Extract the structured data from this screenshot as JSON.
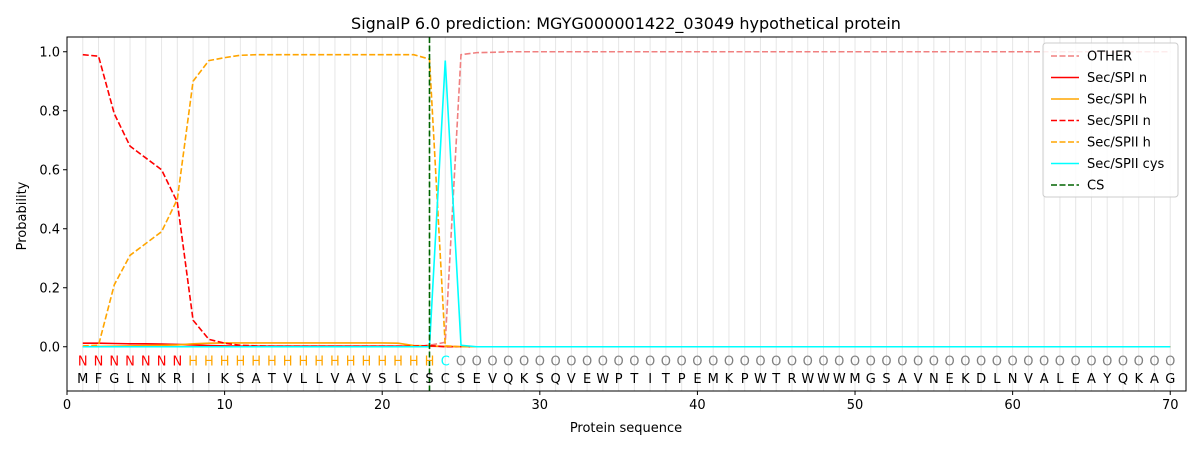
{
  "chart_data": {
    "type": "line",
    "title": "SignalP 6.0 prediction: MGYG000001422_03049 hypothetical protein",
    "xlabel": "Protein sequence",
    "ylabel": "Probability",
    "xlim": [
      0,
      71
    ],
    "ylim": [
      -0.15,
      1.05
    ],
    "xticks": [
      0,
      10,
      20,
      30,
      40,
      50,
      60,
      70
    ],
    "yticks": [
      0.0,
      0.2,
      0.4,
      0.6,
      0.8,
      1.0
    ],
    "xtick_labels": [
      "0",
      "10",
      "20",
      "30",
      "40",
      "50",
      "60",
      "70"
    ],
    "ytick_labels": [
      "0.0",
      "0.2",
      "0.4",
      "0.6",
      "0.8",
      "1.0"
    ],
    "legend_position": "top-right",
    "sequence": [
      "M",
      "F",
      "G",
      "L",
      "N",
      "K",
      "R",
      "I",
      "I",
      "K",
      "S",
      "A",
      "T",
      "V",
      "L",
      "L",
      "V",
      "A",
      "V",
      "S",
      "L",
      "C",
      "S",
      "C",
      "S",
      "E",
      "V",
      "Q",
      "K",
      "S",
      "Q",
      "V",
      "E",
      "W",
      "P",
      "T",
      "I",
      "T",
      "P",
      "E",
      "M",
      "K",
      "P",
      "W",
      "T",
      "R",
      "W",
      "W",
      "W",
      "M",
      "G",
      "S",
      "A",
      "V",
      "N",
      "E",
      "K",
      "D",
      "L",
      "N",
      "V",
      "A",
      "L",
      "E",
      "A",
      "Y",
      "Q",
      "K",
      "A",
      "G"
    ],
    "region_labels": [
      "N",
      "N",
      "N",
      "N",
      "N",
      "N",
      "N",
      "H",
      "H",
      "H",
      "H",
      "H",
      "H",
      "H",
      "H",
      "H",
      "H",
      "H",
      "H",
      "H",
      "H",
      "H",
      "H",
      "C",
      "O",
      "O",
      "O",
      "O",
      "O",
      "O",
      "O",
      "O",
      "O",
      "O",
      "O",
      "O",
      "O",
      "O",
      "O",
      "O",
      "O",
      "O",
      "O",
      "O",
      "O",
      "O",
      "O",
      "O",
      "O",
      "O",
      "O",
      "O",
      "O",
      "O",
      "O",
      "O",
      "O",
      "O",
      "O",
      "O",
      "O",
      "O",
      "O",
      "O",
      "O",
      "O",
      "O",
      "O",
      "O",
      "O"
    ],
    "region_colors": {
      "N": "#ff0000",
      "H": "#ffa500",
      "C": "#00ffff",
      "O": "#808080"
    },
    "cleavage_site": 23,
    "series": [
      {
        "name": "OTHER",
        "color": "#f08080",
        "dash": "dashed",
        "x_start": 1,
        "values": [
          0.0,
          0.0,
          0.0,
          0.0,
          0.0,
          0.0,
          0.0,
          0.0,
          0.0,
          0.0,
          0.0,
          0.0,
          0.0,
          0.0,
          0.0,
          0.0,
          0.0,
          0.0,
          0.0,
          0.0,
          0.0,
          0.0,
          0.005,
          0.015,
          0.99,
          0.997,
          0.998,
          1.0,
          1.0,
          1.0,
          1.0,
          1.0,
          1.0,
          1.0,
          1.0,
          1.0,
          1.0,
          1.0,
          1.0,
          1.0,
          1.0,
          1.0,
          1.0,
          1.0,
          1.0,
          1.0,
          1.0,
          1.0,
          1.0,
          1.0,
          1.0,
          1.0,
          1.0,
          1.0,
          1.0,
          1.0,
          1.0,
          1.0,
          1.0,
          1.0,
          1.0,
          1.0,
          1.0,
          1.0,
          1.0,
          1.0,
          1.0,
          1.0,
          1.0,
          1.0
        ]
      },
      {
        "name": "Sec/SPI n",
        "color": "#ff0000",
        "dash": "solid",
        "x_start": 1,
        "values": [
          0.012,
          0.012,
          0.011,
          0.01,
          0.01,
          0.009,
          0.008,
          0.006,
          0.004,
          0.003,
          0.002,
          0.002,
          0.002,
          0.002,
          0.002,
          0.002,
          0.002,
          0.002,
          0.002,
          0.002,
          0.002,
          0.002,
          0.002,
          0.001,
          0.0,
          0.0,
          0.0,
          0.0,
          0.0,
          0.0,
          0.0,
          0.0,
          0.0,
          0.0,
          0.0,
          0.0,
          0.0,
          0.0,
          0.0,
          0.0,
          0.0,
          0.0,
          0.0,
          0.0,
          0.0,
          0.0,
          0.0,
          0.0,
          0.0,
          0.0,
          0.0,
          0.0,
          0.0,
          0.0,
          0.0,
          0.0,
          0.0,
          0.0,
          0.0,
          0.0,
          0.0,
          0.0,
          0.0,
          0.0,
          0.0,
          0.0,
          0.0,
          0.0,
          0.0,
          0.0
        ]
      },
      {
        "name": "Sec/SPI h",
        "color": "#ffa500",
        "dash": "solid",
        "x_start": 1,
        "values": [
          0.0,
          0.001,
          0.002,
          0.003,
          0.004,
          0.005,
          0.006,
          0.01,
          0.012,
          0.013,
          0.013,
          0.013,
          0.013,
          0.013,
          0.013,
          0.013,
          0.013,
          0.013,
          0.013,
          0.013,
          0.012,
          0.004,
          0.003,
          0.001,
          0.0,
          0.0,
          0.0,
          0.0,
          0.0,
          0.0,
          0.0,
          0.0,
          0.0,
          0.0,
          0.0,
          0.0,
          0.0,
          0.0,
          0.0,
          0.0,
          0.0,
          0.0,
          0.0,
          0.0,
          0.0,
          0.0,
          0.0,
          0.0,
          0.0,
          0.0,
          0.0,
          0.0,
          0.0,
          0.0,
          0.0,
          0.0,
          0.0,
          0.0,
          0.0,
          0.0,
          0.0,
          0.0,
          0.0,
          0.0,
          0.0,
          0.0,
          0.0,
          0.0,
          0.0,
          0.0
        ]
      },
      {
        "name": "Sec/SPII n",
        "color": "#ff0000",
        "dash": "dashed",
        "x_start": 1,
        "values": [
          0.99,
          0.985,
          0.79,
          0.68,
          0.64,
          0.6,
          0.49,
          0.09,
          0.025,
          0.012,
          0.005,
          0.003,
          0.002,
          0.002,
          0.002,
          0.002,
          0.002,
          0.002,
          0.002,
          0.002,
          0.002,
          0.002,
          0.004,
          0.0,
          0.0,
          0.0,
          0.0,
          0.0,
          0.0,
          0.0,
          0.0,
          0.0,
          0.0,
          0.0,
          0.0,
          0.0,
          0.0,
          0.0,
          0.0,
          0.0,
          0.0,
          0.0,
          0.0,
          0.0,
          0.0,
          0.0,
          0.0,
          0.0,
          0.0,
          0.0,
          0.0,
          0.0,
          0.0,
          0.0,
          0.0,
          0.0,
          0.0,
          0.0,
          0.0,
          0.0,
          0.0,
          0.0,
          0.0,
          0.0,
          0.0,
          0.0,
          0.0,
          0.0,
          0.0,
          0.0
        ]
      },
      {
        "name": "Sec/SPII h",
        "color": "#ffa500",
        "dash": "dashed",
        "x_start": 1,
        "values": [
          0.003,
          0.005,
          0.21,
          0.31,
          0.35,
          0.39,
          0.5,
          0.9,
          0.97,
          0.98,
          0.988,
          0.99,
          0.99,
          0.99,
          0.99,
          0.99,
          0.99,
          0.99,
          0.99,
          0.99,
          0.99,
          0.99,
          0.975,
          0.003,
          0.0,
          0.0,
          0.0,
          0.0,
          0.0,
          0.0,
          0.0,
          0.0,
          0.0,
          0.0,
          0.0,
          0.0,
          0.0,
          0.0,
          0.0,
          0.0,
          0.0,
          0.0,
          0.0,
          0.0,
          0.0,
          0.0,
          0.0,
          0.0,
          0.0,
          0.0,
          0.0,
          0.0,
          0.0,
          0.0,
          0.0,
          0.0,
          0.0,
          0.0,
          0.0,
          0.0,
          0.0,
          0.0,
          0.0,
          0.0,
          0.0,
          0.0,
          0.0,
          0.0,
          0.0,
          0.0
        ]
      },
      {
        "name": "Sec/SPII cys",
        "color": "#00ffff",
        "dash": "solid",
        "x_start": 1,
        "values": [
          0.0,
          0.0,
          0.0,
          0.0,
          0.0,
          0.0,
          0.0,
          0.0,
          0.0,
          0.0,
          0.0,
          0.0,
          0.0,
          0.0,
          0.0,
          0.0,
          0.0,
          0.0,
          0.0,
          0.0,
          0.0,
          0.0,
          0.0,
          0.97,
          0.005,
          0.0,
          0.0,
          0.0,
          0.0,
          0.0,
          0.0,
          0.0,
          0.0,
          0.0,
          0.0,
          0.0,
          0.0,
          0.0,
          0.0,
          0.0,
          0.0,
          0.0,
          0.0,
          0.0,
          0.0,
          0.0,
          0.0,
          0.0,
          0.0,
          0.0,
          0.0,
          0.0,
          0.0,
          0.0,
          0.0,
          0.0,
          0.0,
          0.0,
          0.0,
          0.0,
          0.0,
          0.0,
          0.0,
          0.0,
          0.0,
          0.0,
          0.0,
          0.0,
          0.0,
          0.0
        ]
      }
    ],
    "legend": [
      {
        "name": "OTHER",
        "color": "#f08080",
        "dash": "dashed"
      },
      {
        "name": "Sec/SPI n",
        "color": "#ff0000",
        "dash": "solid"
      },
      {
        "name": "Sec/SPI h",
        "color": "#ffa500",
        "dash": "solid"
      },
      {
        "name": "Sec/SPII n",
        "color": "#ff0000",
        "dash": "dashed"
      },
      {
        "name": "Sec/SPII h",
        "color": "#ffa500",
        "dash": "dashed"
      },
      {
        "name": "Sec/SPII cys",
        "color": "#00ffff",
        "dash": "solid"
      },
      {
        "name": "CS",
        "color": "#006400",
        "dash": "dashed"
      }
    ]
  }
}
